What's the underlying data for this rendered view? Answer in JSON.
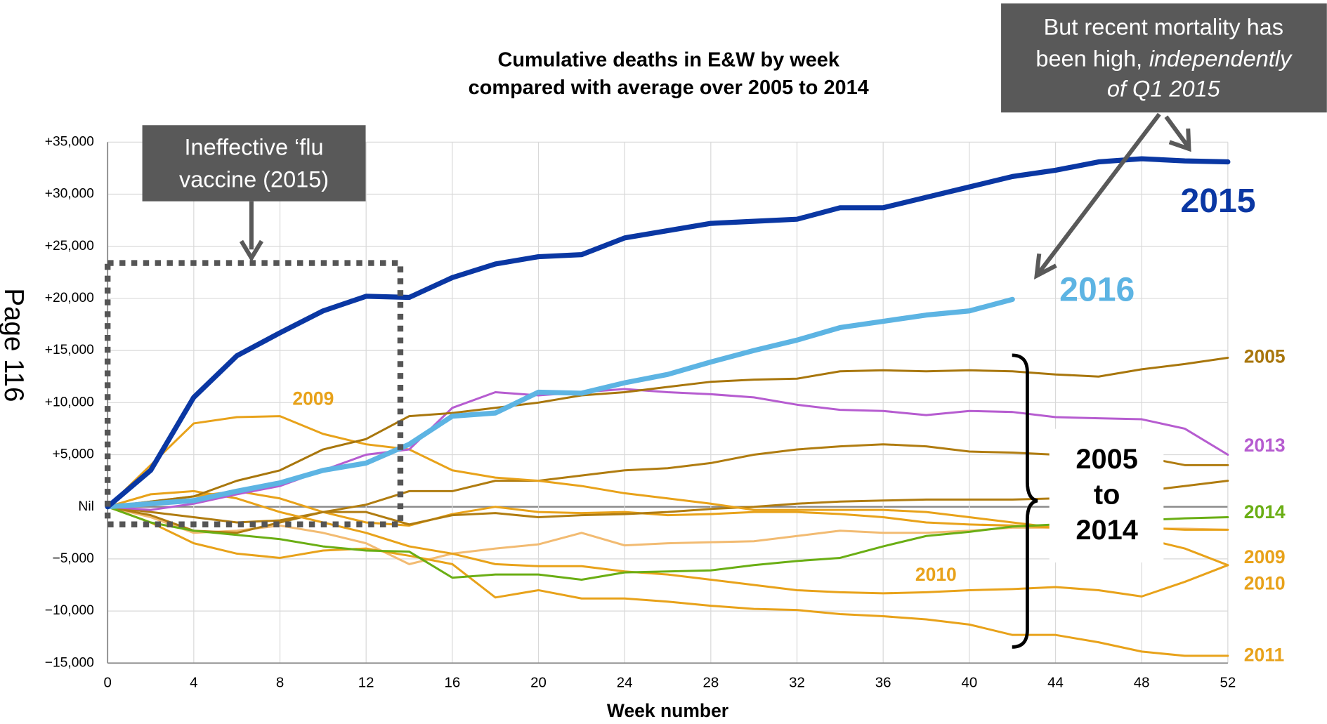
{
  "chart_data": {
    "type": "line",
    "title": [
      "Cumulative deaths in E&W by week",
      "compared with average over 2005 to 2014"
    ],
    "x_label": "Week number",
    "side_text": "Page 116",
    "flu_note": [
      "Ineffective ‘flu",
      "vaccine (2015)"
    ],
    "recent_note": [
      "But recent mortality has",
      "been high,",
      "independently",
      "of Q1 2015"
    ],
    "bracket_note": [
      "2005",
      "to",
      "2014"
    ],
    "inline_labels": [
      "2009",
      "2010"
    ],
    "x": [
      0,
      2,
      4,
      6,
      8,
      10,
      12,
      14,
      16,
      18,
      20,
      22,
      24,
      26,
      28,
      30,
      32,
      34,
      36,
      38,
      40,
      42,
      44,
      46,
      48,
      50,
      52
    ],
    "xlim": [
      0,
      52
    ],
    "xticks": [
      0,
      4,
      8,
      12,
      16,
      20,
      24,
      28,
      32,
      36,
      40,
      44,
      48,
      52
    ],
    "ylim": [
      -15000,
      35000
    ],
    "yticks": [
      {
        "value": -15000,
        "label": "−15,000"
      },
      {
        "value": -10000,
        "label": "−10,000"
      },
      {
        "value": -5000,
        "label": "−5,000"
      },
      {
        "value": 0,
        "label": "Nil"
      },
      {
        "value": 5000,
        "label": "+5,000"
      },
      {
        "value": 10000,
        "label": "+10,000"
      },
      {
        "value": 15000,
        "label": "+15,000"
      },
      {
        "value": 20000,
        "label": "+20,000"
      },
      {
        "value": 25000,
        "label": "+25,000"
      },
      {
        "value": 30000,
        "label": "+30,000"
      },
      {
        "value": 35000,
        "label": "+35,000"
      }
    ],
    "grid": true,
    "series": [
      {
        "name": "2015",
        "color": "#0a37a3",
        "values": [
          0,
          3500,
          10500,
          14500,
          16700,
          18800,
          20200,
          20100,
          22000,
          23300,
          24000,
          24200,
          25800,
          26500,
          27200,
          27400,
          27600,
          28700,
          28700,
          29700,
          30700,
          31700,
          32300,
          33100,
          33400,
          33200,
          33100
        ]
      },
      {
        "name": "2016",
        "color": "#5db4e3",
        "values": [
          0,
          300,
          600,
          1500,
          2300,
          3500,
          4200,
          6000,
          8700,
          9000,
          11000,
          10900,
          11900,
          12700,
          13900,
          15000,
          16000,
          17200,
          17800,
          18400,
          18800,
          19900,
          null,
          null,
          null,
          null,
          null
        ]
      },
      {
        "name": "2005",
        "color": "#a8760c",
        "values": [
          0,
          500,
          1000,
          2500,
          3500,
          5500,
          6500,
          8700,
          9000,
          9500,
          10000,
          10700,
          11000,
          11500,
          12000,
          12200,
          12300,
          13000,
          13100,
          13000,
          13100,
          13000,
          12700,
          12500,
          13200,
          13700,
          14300
        ]
      },
      {
        "name": "2013",
        "color": "#b65cd0",
        "values": [
          0,
          -300,
          300,
          1200,
          2000,
          3500,
          5000,
          5500,
          9500,
          11000,
          10700,
          11000,
          11300,
          11000,
          10800,
          10500,
          9800,
          9300,
          9200,
          8800,
          9200,
          9100,
          8600,
          8500,
          8400,
          7500,
          5000
        ]
      },
      {
        "name": "2014",
        "color": "#6aae14",
        "values": [
          0,
          -1500,
          -2300,
          -2700,
          -3100,
          -3800,
          -4200,
          -4300,
          -6800,
          -6500,
          -6500,
          -7000,
          -6300,
          -6200,
          -6100,
          -5600,
          -5200,
          -4900,
          -3800,
          -2800,
          -2400,
          -1900,
          -1700,
          -1500,
          -1300,
          -1100,
          -1000
        ]
      },
      {
        "name": "2009",
        "color": "#e8a21a",
        "values": [
          0,
          4000,
          8000,
          8600,
          8700,
          7000,
          6000,
          5500,
          3500,
          2800,
          2500,
          2000,
          1300,
          800,
          300,
          -300,
          -300,
          -300,
          -300,
          -500,
          -1000,
          -1500,
          -2000,
          -2500,
          -3000,
          -4000,
          -5600
        ]
      },
      {
        "name": "2010",
        "color": "#e8a21a",
        "values": [
          0,
          1200,
          1500,
          800,
          -500,
          -1500,
          -2500,
          -3800,
          -4500,
          -5500,
          -5700,
          -5700,
          -6200,
          -6500,
          -7000,
          -7500,
          -8000,
          -8200,
          -8300,
          -8200,
          -8000,
          -7900,
          -7700,
          -8000,
          -8600,
          -7200,
          -5600
        ]
      },
      {
        "name": "2011",
        "color": "#e8a21a",
        "values": [
          0,
          -1500,
          -3500,
          -4500,
          -4900,
          -4200,
          -4000,
          -4700,
          -5500,
          -8700,
          -8000,
          -8800,
          -8800,
          -9100,
          -9500,
          -9800,
          -9900,
          -10300,
          -10500,
          -10800,
          -11300,
          -12300,
          -12300,
          -13000,
          -13900,
          -14300,
          -14300
        ]
      },
      {
        "color": "#b07c10",
        "values": [
          0,
          -500,
          -1000,
          -1500,
          -1300,
          -500,
          200,
          1500,
          1500,
          2500,
          2500,
          3000,
          3500,
          3700,
          4200,
          5000,
          5500,
          5800,
          6000,
          5800,
          5300,
          5200,
          5000,
          5000,
          4800,
          4000,
          4000
        ]
      },
      {
        "color": "#b07c10",
        "values": [
          0,
          -800,
          -2300,
          -2500,
          -1500,
          -500,
          -500,
          -1700,
          -800,
          -600,
          -1000,
          -800,
          -700,
          -500,
          -200,
          0,
          300,
          500,
          600,
          700,
          700,
          700,
          800,
          1000,
          1500,
          2000,
          2500
        ]
      },
      {
        "color": "#e8a21a",
        "values": [
          0,
          500,
          1000,
          1500,
          800,
          -500,
          -1500,
          -1800,
          -700,
          0,
          -500,
          -600,
          -500,
          -800,
          -700,
          -500,
          -500,
          -700,
          -1000,
          -1500,
          -1700,
          -1800,
          -2000,
          -2000,
          -2000,
          -2200,
          -2200
        ]
      },
      {
        "color": "#f2bb72",
        "values": [
          0,
          -1000,
          -2500,
          -2300,
          -1800,
          -2500,
          -3500,
          -5500,
          -4500,
          -4000,
          -3600,
          -2500,
          -3700,
          -3500,
          -3400,
          -3300,
          -2800,
          -2300,
          -2500,
          -2500,
          -2300,
          -2000,
          -2000,
          -2000,
          -2100,
          -2100,
          -2200
        ]
      }
    ]
  }
}
